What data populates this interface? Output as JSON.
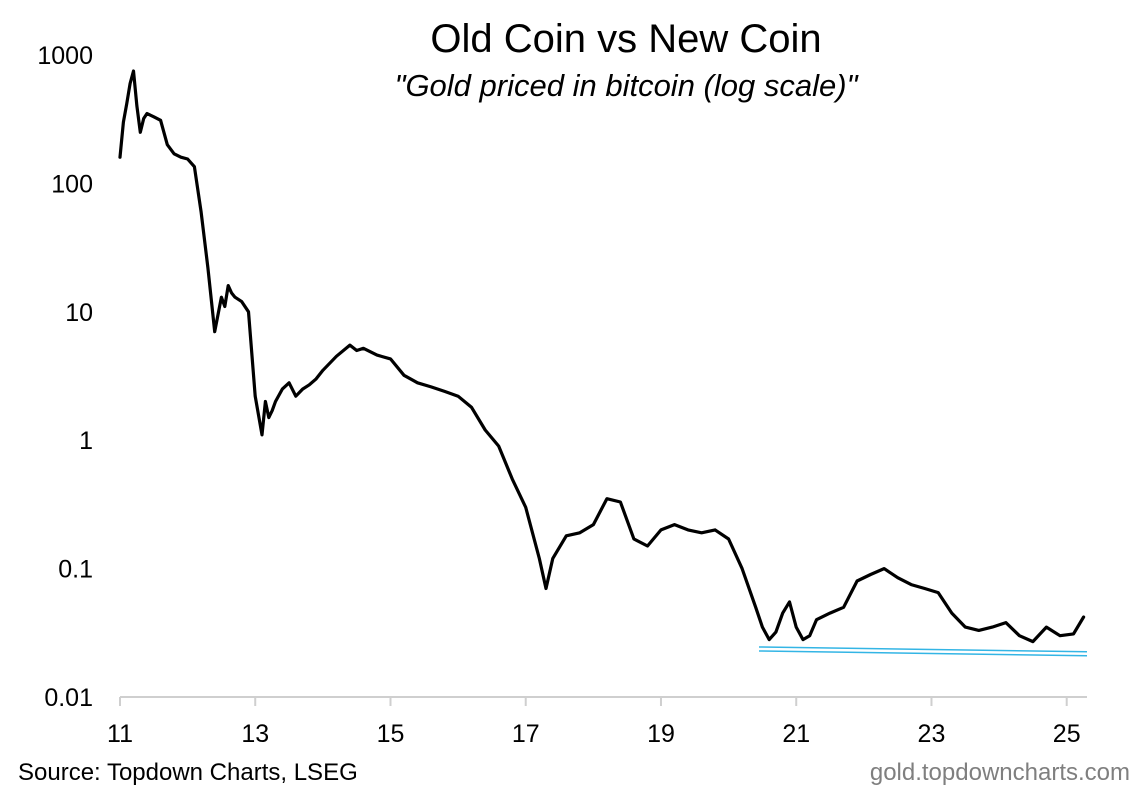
{
  "chart_data": {
    "type": "line",
    "title": "Old Coin vs New Coin",
    "subtitle": "\"Gold priced in bitcoin (log scale)\"",
    "xlabel": "",
    "ylabel": "",
    "y_scale": "log",
    "ylim": [
      0.01,
      1000
    ],
    "xlim": [
      2011,
      2025.3
    ],
    "x_ticks": [
      {
        "value": 2011,
        "label": "11"
      },
      {
        "value": 2013,
        "label": "13"
      },
      {
        "value": 2015,
        "label": "15"
      },
      {
        "value": 2017,
        "label": "17"
      },
      {
        "value": 2019,
        "label": "19"
      },
      {
        "value": 2021,
        "label": "21"
      },
      {
        "value": 2023,
        "label": "23"
      },
      {
        "value": 2025,
        "label": "25"
      }
    ],
    "y_ticks": [
      {
        "value": 1000,
        "label": "1000"
      },
      {
        "value": 100,
        "label": "100"
      },
      {
        "value": 10,
        "label": "10"
      },
      {
        "value": 1,
        "label": "1"
      },
      {
        "value": 0.1,
        "label": "0.1"
      },
      {
        "value": 0.01,
        "label": "0.01"
      }
    ],
    "grid": false,
    "legend": "none",
    "series": [
      {
        "color": "#000000",
        "x": [
          2011.0,
          2011.05,
          2011.1,
          2011.15,
          2011.2,
          2011.25,
          2011.3,
          2011.35,
          2011.4,
          2011.45,
          2011.5,
          2011.6,
          2011.7,
          2011.8,
          2011.9,
          2012.0,
          2012.1,
          2012.2,
          2012.3,
          2012.4,
          2012.5,
          2012.55,
          2012.6,
          2012.65,
          2012.7,
          2012.8,
          2012.9,
          2013.0,
          2013.1,
          2013.15,
          2013.2,
          2013.25,
          2013.3,
          2013.4,
          2013.5,
          2013.6,
          2013.7,
          2013.8,
          2013.9,
          2014.0,
          2014.2,
          2014.4,
          2014.5,
          2014.6,
          2014.8,
          2015.0,
          2015.2,
          2015.4,
          2015.6,
          2015.8,
          2016.0,
          2016.2,
          2016.4,
          2016.6,
          2016.8,
          2017.0,
          2017.2,
          2017.3,
          2017.4,
          2017.6,
          2017.8,
          2018.0,
          2018.2,
          2018.4,
          2018.6,
          2018.8,
          2019.0,
          2019.2,
          2019.4,
          2019.6,
          2019.8,
          2020.0,
          2020.2,
          2020.4,
          2020.5,
          2020.6,
          2020.7,
          2020.8,
          2020.9,
          2021.0,
          2021.1,
          2021.2,
          2021.3,
          2021.5,
          2021.7,
          2021.9,
          2022.1,
          2022.3,
          2022.5,
          2022.7,
          2022.9,
          2023.1,
          2023.3,
          2023.5,
          2023.7,
          2023.9,
          2024.1,
          2024.3,
          2024.5,
          2024.7,
          2024.9,
          2025.1,
          2025.25
        ],
        "values": [
          160,
          300,
          420,
          600,
          750,
          400,
          250,
          320,
          350,
          340,
          330,
          310,
          200,
          170,
          160,
          155,
          135,
          60,
          22,
          7,
          13,
          11,
          16,
          14,
          13,
          12,
          10,
          2.2,
          1.1,
          2.0,
          1.5,
          1.7,
          2.0,
          2.5,
          2.8,
          2.2,
          2.5,
          2.7,
          3.0,
          3.5,
          4.5,
          5.5,
          5.0,
          5.2,
          4.6,
          4.3,
          3.2,
          2.8,
          2.6,
          2.4,
          2.2,
          1.8,
          1.2,
          0.9,
          0.5,
          0.3,
          0.12,
          0.07,
          0.12,
          0.18,
          0.19,
          0.22,
          0.35,
          0.33,
          0.17,
          0.15,
          0.2,
          0.22,
          0.2,
          0.19,
          0.2,
          0.17,
          0.1,
          0.05,
          0.035,
          0.028,
          0.032,
          0.045,
          0.055,
          0.035,
          0.028,
          0.03,
          0.04,
          0.045,
          0.05,
          0.08,
          0.09,
          0.1,
          0.085,
          0.075,
          0.07,
          0.065,
          0.045,
          0.035,
          0.033,
          0.035,
          0.038,
          0.03,
          0.027,
          0.035,
          0.03,
          0.031,
          0.042
        ]
      },
      {
        "type": "support-line",
        "color": "#33b5e5",
        "x": [
          2020.45,
          2025.3
        ],
        "values": [
          0.0245,
          0.0225
        ]
      }
    ],
    "annotations": []
  },
  "footer": {
    "source": "Source: Topdown Charts, LSEG",
    "site": "gold.topdowncharts.com"
  }
}
